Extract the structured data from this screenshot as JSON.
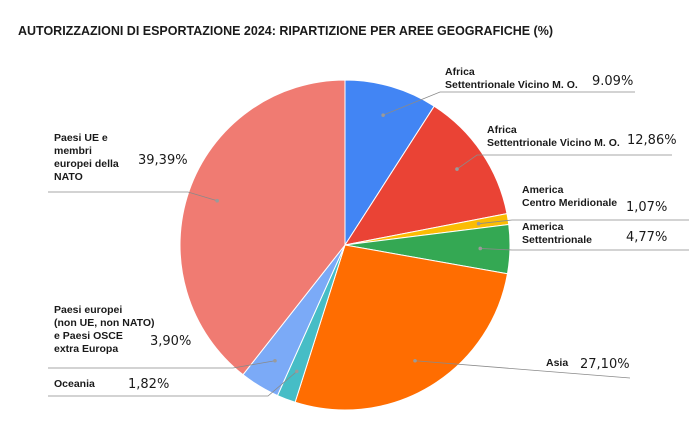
{
  "chart_data": {
    "type": "pie",
    "title": "AUTORIZZAZIONI DI ESPORTAZIONE 2024: RIPARTIZIONE PER AREE GEOGRAFICHE (%)",
    "slices": [
      {
        "label": [
          "Africa",
          "Settentrionale Vicino M. O."
        ],
        "value": 9.09,
        "value_label": "9.09%",
        "color": "#4285f4"
      },
      {
        "label": [
          "Africa",
          "Settentrionale Vicino M. O."
        ],
        "value": 12.86,
        "value_label": "12,86%",
        "color": "#ea4335"
      },
      {
        "label": [
          "America",
          "Centro Meridionale"
        ],
        "value": 1.07,
        "value_label": "1,07%",
        "color": "#fbbc04"
      },
      {
        "label": [
          "America",
          "Settentrionale"
        ],
        "value": 4.77,
        "value_label": "4,77%",
        "color": "#34a853"
      },
      {
        "label": [
          "Asia"
        ],
        "value": 27.1,
        "value_label": "27,10%",
        "color": "#ff6d01"
      },
      {
        "label": [
          "Oceania"
        ],
        "value": 1.82,
        "value_label": "1,82%",
        "color": "#46bdc6"
      },
      {
        "label": [
          "Paesi europei",
          "(non UE, non NATO)",
          "e Paesi OSCE",
          "extra Europa"
        ],
        "value": 3.9,
        "value_label": "3,90%",
        "color": "#7baaf7"
      },
      {
        "label": [
          "Paesi UE e",
          "membri",
          "europei della",
          "NATO"
        ],
        "value": 39.39,
        "value_label": "39,39%",
        "color": "#f07b72"
      }
    ]
  }
}
